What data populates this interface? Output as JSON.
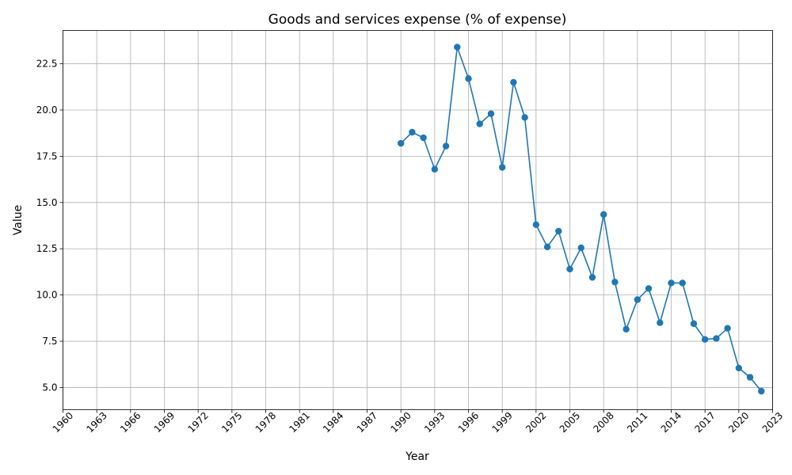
{
  "chart_data": {
    "type": "line",
    "title": "Goods and services expense (% of expense)",
    "xlabel": "Year",
    "ylabel": "Value",
    "xlim": [
      1960,
      2023
    ],
    "ylim": [
      3.8,
      24.3
    ],
    "grid": true,
    "x_ticks": [
      1960,
      1963,
      1966,
      1969,
      1972,
      1975,
      1978,
      1981,
      1984,
      1987,
      1990,
      1993,
      1996,
      1999,
      2002,
      2005,
      2008,
      2011,
      2014,
      2017,
      2020,
      2023
    ],
    "y_ticks": [
      5.0,
      7.5,
      10.0,
      12.5,
      15.0,
      17.5,
      20.0,
      22.5
    ],
    "x_tick_labels": [
      "1960",
      "1963",
      "1966",
      "1969",
      "1972",
      "1975",
      "1978",
      "1981",
      "1984",
      "1987",
      "1990",
      "1993",
      "1996",
      "1999",
      "2002",
      "2005",
      "2008",
      "2011",
      "2014",
      "2017",
      "2020",
      "2023"
    ],
    "y_tick_labels": [
      "5.0",
      "7.5",
      "10.0",
      "12.5",
      "15.0",
      "17.5",
      "20.0",
      "22.5"
    ],
    "colors": {
      "series": "#1f77b4",
      "grid": "#b0b0b0"
    },
    "series": [
      {
        "x": [
          1990,
          1991,
          1992,
          1993,
          1994,
          1995,
          1996,
          1997,
          1998,
          1999,
          2000,
          2001,
          2002,
          2003,
          2004,
          2005,
          2006,
          2007,
          2008,
          2009,
          2010,
          2011,
          2012,
          2013,
          2014,
          2015,
          2016,
          2017,
          2018,
          2019,
          2020,
          2021,
          2022
        ],
        "values": [
          18.2,
          18.8,
          18.5,
          16.8,
          18.05,
          23.4,
          21.7,
          19.25,
          19.8,
          16.9,
          21.5,
          19.6,
          13.8,
          12.6,
          13.45,
          11.4,
          12.55,
          10.95,
          14.35,
          10.7,
          8.15,
          9.75,
          10.35,
          8.5,
          10.65,
          10.65,
          8.45,
          7.6,
          7.65,
          8.2,
          6.05,
          5.55,
          4.8
        ]
      }
    ]
  }
}
